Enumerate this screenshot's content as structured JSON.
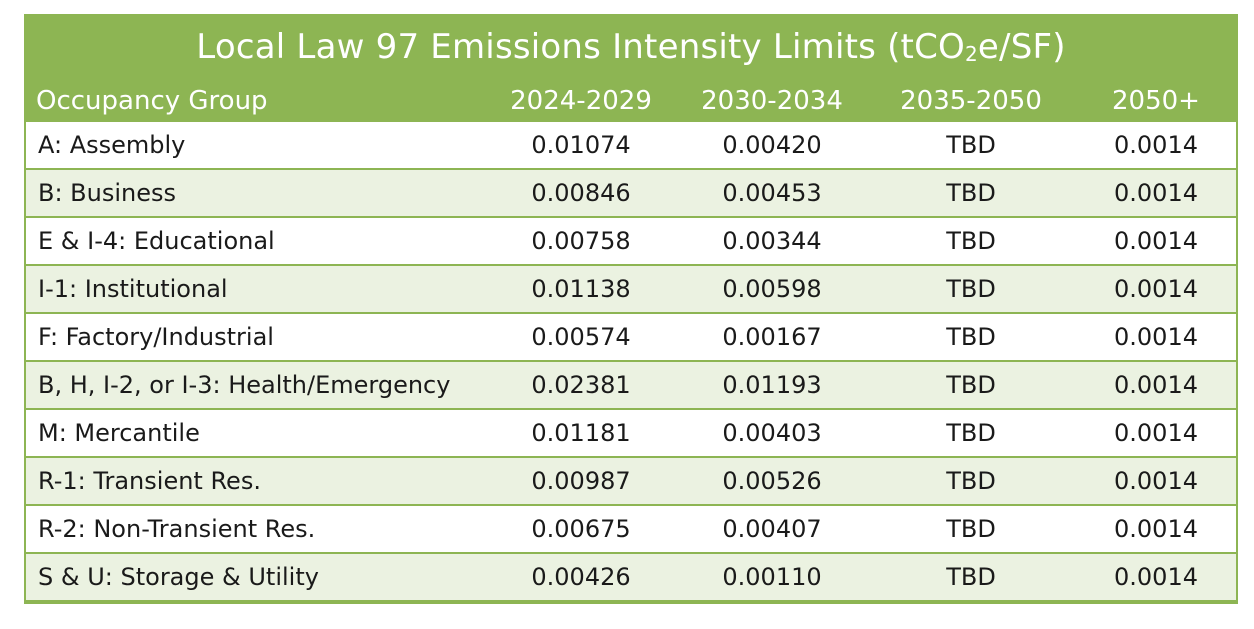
{
  "chart_data": {
    "type": "table",
    "title": {
      "main": "Local Law 97 Emissions Intensity Limits (tCO",
      "subscript": "2",
      "tail": "e/SF)"
    },
    "columns": [
      "Occupancy Group",
      "2024-2029",
      "2030-2034",
      "2035-2050",
      "2050+"
    ],
    "rows": [
      [
        "A: Assembly",
        "0.01074",
        "0.00420",
        "TBD",
        "0.0014"
      ],
      [
        "B: Business",
        "0.00846",
        "0.00453",
        "TBD",
        "0.0014"
      ],
      [
        "E & I-4: Educational",
        "0.00758",
        "0.00344",
        "TBD",
        "0.0014"
      ],
      [
        "I-1: Institutional",
        "0.01138",
        "0.00598",
        "TBD",
        "0.0014"
      ],
      [
        "F: Factory/Industrial",
        "0.00574",
        "0.00167",
        "TBD",
        "0.0014"
      ],
      [
        "B, H, I-2, or I-3: Health/Emergency",
        "0.02381",
        "0.01193",
        "TBD",
        "0.0014"
      ],
      [
        "M: Mercantile",
        "0.01181",
        "0.00403",
        "TBD",
        "0.0014"
      ],
      [
        "R-1: Transient Res.",
        "0.00987",
        "0.00526",
        "TBD",
        "0.0014"
      ],
      [
        "R-2: Non-Transient Res.",
        "0.00675",
        "0.00407",
        "TBD",
        "0.0014"
      ],
      [
        "S & U: Storage & Utility",
        "0.00426",
        "0.00110",
        "TBD",
        "0.0014"
      ]
    ]
  },
  "colors": {
    "header_green": "#8db553",
    "row_alt": "#ebf2e1",
    "row_base": "#ffffff",
    "text": "#1a1a1a"
  }
}
